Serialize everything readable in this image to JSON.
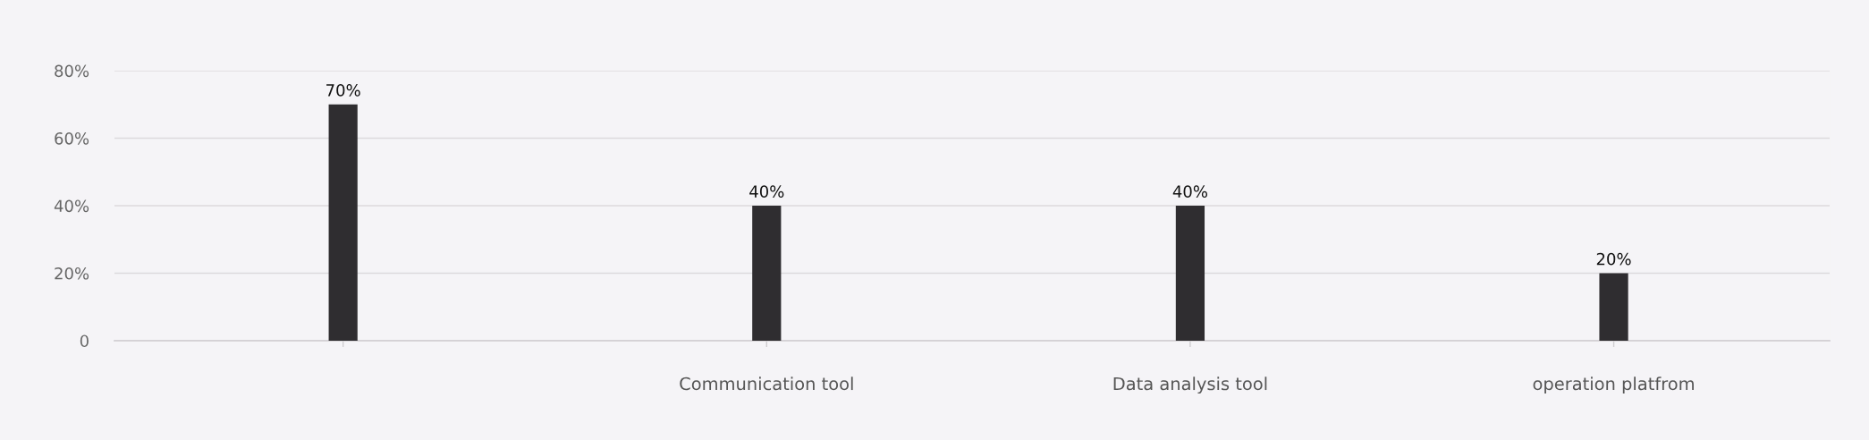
{
  "chart_data": {
    "type": "bar",
    "categories": [
      null,
      "Communication tool",
      "Data analysis tool",
      "operation platfrom"
    ],
    "values": [
      70,
      40,
      40,
      20
    ],
    "value_labels": [
      "70%",
      "40%",
      "40%",
      "20%"
    ],
    "color": "#2f2d30",
    "ylim": [
      0,
      80
    ],
    "yticks": [
      0,
      {
        "value": 20,
        "label": "20%"
      },
      {
        "value": 40,
        "label": "40%"
      },
      {
        "value": 60,
        "label": "60%"
      },
      {
        "value": 80,
        "label": "80%"
      }
    ],
    "grid": "y"
  }
}
